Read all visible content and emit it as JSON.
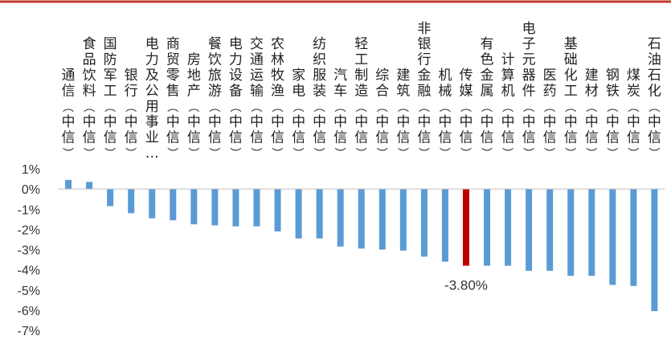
{
  "chart_data": {
    "type": "bar",
    "title": "",
    "xlabel": "",
    "ylabel": "",
    "ylim": [
      -7,
      1
    ],
    "yticks": [
      "1%",
      "0%",
      "-1%",
      "-2%",
      "-3%",
      "-4%",
      "-5%",
      "-6%",
      "-7%"
    ],
    "categories": [
      "通信(中信)",
      "食品饮料(中信)",
      "国防军工(中信)",
      "银行(中信)",
      "电力及公用事业(中信)",
      "商贸零售(中信)",
      "房地产(中信)",
      "餐饮旅游(中信)",
      "电力设备(中信)",
      "交通运输(中信)",
      "农林牧渔(中信)",
      "家电(中信)",
      "纺织服装(中信)",
      "汽车(中信)",
      "轻工制造(中信)",
      "综合(中信)",
      "建筑(中信)",
      "非银行金融(中信)",
      "机械(中信)",
      "传媒(中信)",
      "有色金属(中信)",
      "计算机(中信)",
      "电子元器件(中信)",
      "医药(中信)",
      "基础化工(中信)",
      "建材(中信)",
      "钢铁(中信)",
      "煤炭(中信)",
      "石油石化(中信)"
    ],
    "label_lines": [
      "通信(中信)",
      "食品饮料(中信)",
      "国防军工(中信)",
      "银行(中信)",
      "电力及公用事业…",
      "商贸零售(中信)",
      "房地产(中信)",
      "餐饮旅游(中信)",
      "电力设备(中信)",
      "交通运输(中信)",
      "农林牧渔(中信)",
      "家电(中信)",
      "纺织服装(中信)",
      "汽车(中信)",
      "轻工制造(中信)",
      "综合(中信)",
      "建筑(中信)",
      "非银行金融(中信)",
      "机械(中信)",
      "传媒(中信)",
      "有色金属(中信)",
      "计算机(中信)",
      "电子元器件(中信)",
      "医药(中信)",
      "基础化工(中信)",
      "建材(中信)",
      "钢铁(中信)",
      "煤炭(中信)",
      "石油石化(中信)"
    ],
    "values": [
      0.45,
      0.35,
      -0.85,
      -1.2,
      -1.45,
      -1.55,
      -1.75,
      -1.8,
      -1.85,
      -1.85,
      -2.1,
      -2.45,
      -2.45,
      -2.85,
      -2.95,
      -3.0,
      -3.05,
      -3.35,
      -3.6,
      -3.8,
      -3.8,
      -3.8,
      -4.05,
      -4.05,
      -4.3,
      -4.3,
      -4.75,
      -4.8,
      -6.05
    ],
    "highlight_index": 19,
    "highlight_label": "-3.80%",
    "colors": {
      "bar": "#5b9bd5",
      "highlight": "#c00000",
      "axis": "#bfbfbf",
      "top_line": "#c0392b"
    }
  }
}
